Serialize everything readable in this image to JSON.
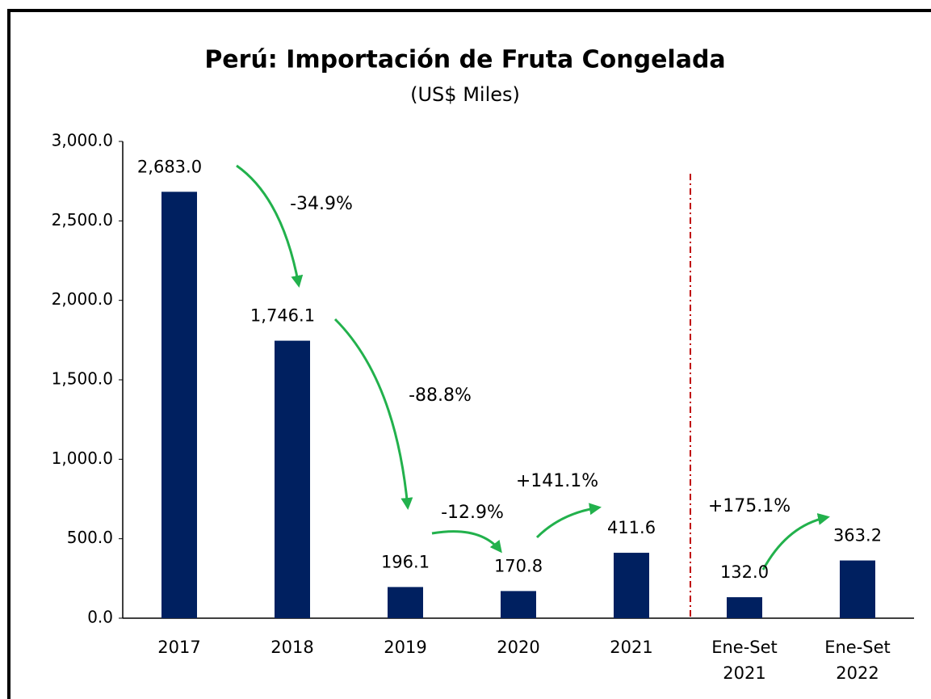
{
  "chart_data": {
    "type": "bar",
    "title": "Perú: Importación de Fruta Congelada",
    "subtitle": "(US$ Miles)",
    "categories": [
      "2017",
      "2018",
      "2019",
      "2020",
      "2021",
      "Ene-Set 2021",
      "Ene-Set 2022"
    ],
    "values": [
      2683.0,
      1746.1,
      196.1,
      170.8,
      411.6,
      132.0,
      363.2
    ],
    "value_labels": [
      "2,683.0",
      "1,746.1",
      "196.1",
      "170.8",
      "411.6",
      "132.0",
      "363.2"
    ],
    "color": "#002060",
    "ylim": [
      0,
      3000
    ],
    "yticks": [
      {
        "value": 0,
        "label": "0.0"
      },
      {
        "value": 500,
        "label": "500.0"
      },
      {
        "value": 1000,
        "label": "1,000.0"
      },
      {
        "value": 1500,
        "label": "1,500.0"
      },
      {
        "value": 2000,
        "label": "2,000.0"
      },
      {
        "value": 2500,
        "label": "2,500.0"
      },
      {
        "value": 3000,
        "label": "3,000.0"
      }
    ],
    "annotations": [
      "-34.9%",
      "-88.8%",
      "-12.9%",
      "+141.1%",
      "+175.1%"
    ]
  }
}
